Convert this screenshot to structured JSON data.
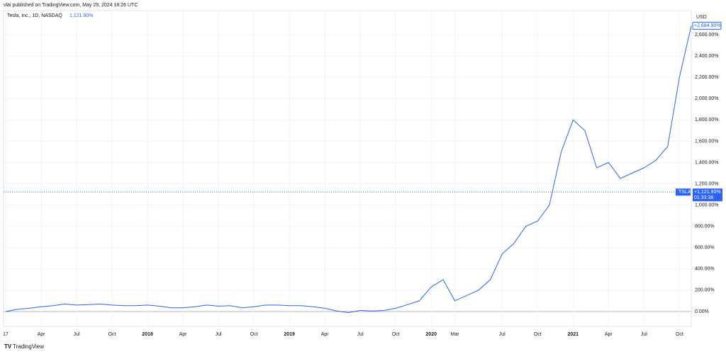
{
  "chart_data": {
    "type": "line",
    "published": "vlai published on TradingView.com, May 29, 2024 18:26 UTC",
    "title": "Tesla, Inc., 1D, NASDAQ",
    "legend_value": "1,121.90%",
    "currency": "USD",
    "logo": "TradingView",
    "x": [
      "2017-01",
      "2017-02",
      "2017-03",
      "2017-04",
      "2017-05",
      "2017-06",
      "2017-07",
      "2017-08",
      "2017-09",
      "2017-10",
      "2017-11",
      "2017-12",
      "2018-01",
      "2018-02",
      "2018-03",
      "2018-04",
      "2018-05",
      "2018-06",
      "2018-07",
      "2018-08",
      "2018-09",
      "2018-10",
      "2018-11",
      "2018-12",
      "2019-01",
      "2019-02",
      "2019-03",
      "2019-04",
      "2019-05",
      "2019-06",
      "2019-07",
      "2019-08",
      "2019-09",
      "2019-10",
      "2019-11",
      "2019-12",
      "2020-01",
      "2020-02",
      "2020-03",
      "2020-04",
      "2020-05",
      "2020-06",
      "2020-07",
      "2020-08",
      "2020-09",
      "2020-10",
      "2020-11",
      "2020-12",
      "2021-01",
      "2021-02",
      "2021-03",
      "2021-04",
      "2021-05",
      "2021-06",
      "2021-07",
      "2021-08",
      "2021-09",
      "2021-10",
      "2021-11"
    ],
    "series": [
      {
        "name": "TSLA",
        "color": "#2962ff",
        "values": [
          0,
          20,
          30,
          45,
          55,
          70,
          60,
          65,
          70,
          60,
          55,
          55,
          60,
          50,
          35,
          35,
          45,
          60,
          50,
          55,
          35,
          45,
          60,
          60,
          55,
          55,
          45,
          30,
          5,
          -10,
          10,
          5,
          10,
          30,
          65,
          100,
          230,
          300,
          100,
          150,
          200,
          300,
          540,
          640,
          800,
          850,
          1000,
          1500,
          1800,
          1700,
          1350,
          1400,
          1250,
          1300,
          1350,
          1420,
          1550,
          2200,
          2684.9
        ],
        "value_labels": {
          "10": null
        }
      }
    ],
    "last_label": "+2,684.90%",
    "price_line": {
      "name": "TSLA",
      "value": 1121.9,
      "label": "+1,121.90%",
      "countdown": "01:33:38"
    },
    "xlim": [
      "2017-01",
      "2021-11"
    ],
    "xticks": [
      {
        "value": "2017-01",
        "label": "17"
      },
      {
        "value": "2017-04",
        "label": "Apr"
      },
      {
        "value": "2017-07",
        "label": "Jul"
      },
      {
        "value": "2017-10",
        "label": "Oct"
      },
      {
        "value": "2018-01",
        "label": "2018"
      },
      {
        "value": "2018-04",
        "label": "Apr"
      },
      {
        "value": "2018-07",
        "label": "Jul"
      },
      {
        "value": "2018-10",
        "label": "Oct"
      },
      {
        "value": "2019-01",
        "label": "2019"
      },
      {
        "value": "2019-04",
        "label": "Apr"
      },
      {
        "value": "2019-07",
        "label": "Jul"
      },
      {
        "value": "2019-10",
        "label": "Oct"
      },
      {
        "value": "2020-01",
        "label": "2020"
      },
      {
        "value": "2020-03",
        "label": "Mar"
      },
      {
        "value": "2020-07",
        "label": "Jul"
      },
      {
        "value": "2020-10",
        "label": "Oct"
      },
      {
        "value": "2021-01",
        "label": "2021"
      },
      {
        "value": "2021-04",
        "label": "Apr"
      },
      {
        "value": "2021-07",
        "label": "Jul"
      },
      {
        "value": "2021-10",
        "label": "Oct"
      }
    ],
    "ylim": [
      -140,
      2827
    ],
    "yticks": [
      {
        "value": 0,
        "label": "0.00%"
      },
      {
        "value": 200,
        "label": "200.00%"
      },
      {
        "value": 400,
        "label": "400.00%"
      },
      {
        "value": 600,
        "label": "600.00%"
      },
      {
        "value": 800,
        "label": "800.00%"
      },
      {
        "value": 1000,
        "label": "1,000.00%"
      },
      {
        "value": 1200,
        "label": "1,200.00%"
      },
      {
        "value": 1400,
        "label": "1,400.00%"
      },
      {
        "value": 1600,
        "label": "1,600.00%"
      },
      {
        "value": 1800,
        "label": "1,800.00%"
      },
      {
        "value": 2000,
        "label": "2,000.00%"
      },
      {
        "value": 2200,
        "label": "2,200.00%"
      },
      {
        "value": 2400,
        "label": "2,400.00%"
      },
      {
        "value": 2600,
        "label": "2,600.00%"
      }
    ],
    "grid": true
  }
}
